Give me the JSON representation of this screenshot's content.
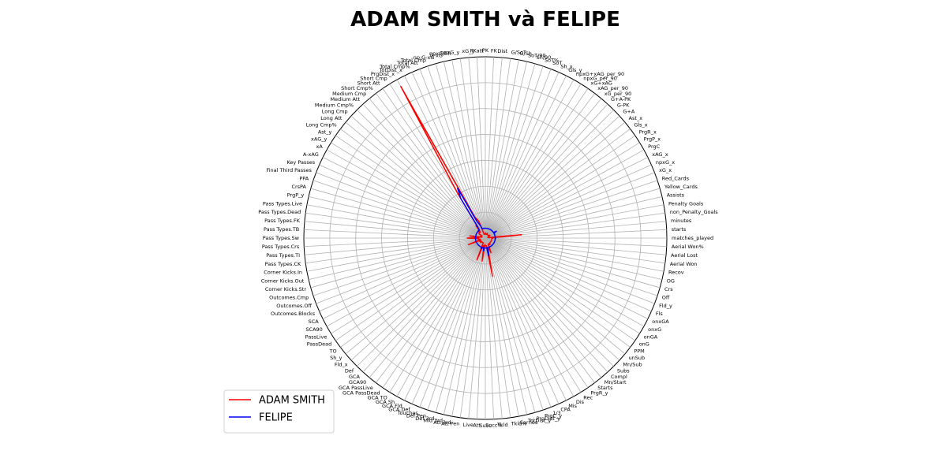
{
  "chart_data": {
    "type": "radar",
    "title": "ADAM SMITH và FELIPE",
    "categories": [
      "matches_played",
      "starts",
      "minutes",
      "non_Penalty_Goals",
      "Penalty Goals",
      "Assists",
      "Yellow_Cards",
      "Red_Cards",
      "xG_x",
      "npxG_x",
      "xAG_x",
      "PrgC",
      "PrgP_x",
      "PrgR_x",
      "Gls_x",
      "Ast_x",
      "G+A",
      "G-PK",
      "G+A-PK",
      "xG_per_90",
      "xAG_per_90",
      "xG+xAG",
      "npxG_per_90",
      "npxG+xAG_per_90",
      "Gls_y",
      "Sh_x",
      "SoT",
      "SoT%",
      "Sh/90",
      "SoT/90",
      "G/Sh",
      "G/SoT",
      "Dist",
      "FK",
      "PK",
      "PKatt",
      "xG_y",
      "npxG_y",
      "npxG/Sh",
      "G-xG",
      "np:G-xG",
      "Total Cmp",
      "Total Att",
      "Total Cmp%",
      "TotDist_x",
      "PrgDist_x",
      "Short Cmp",
      "Short Att",
      "Short Cmp%",
      "Medium Cmp",
      "Medium Att",
      "Medium Cmp%",
      "Long Cmp",
      "Long Att",
      "Long Cmp%",
      "Ast_y",
      "xAG_y",
      "xA",
      "A-xAG",
      "Key Passes",
      "Final Third Passes",
      "PPA",
      "CrsPA",
      "PrgP_y",
      "Pass Types.Live",
      "Pass Types.Dead",
      "Pass Types.FK",
      "Pass Types.TB",
      "Pass Types.Sw",
      "Pass Types.Crs",
      "Pass Types.TI",
      "Pass Types.CK",
      "Corner Kicks.In",
      "Corner Kicks.Out",
      "Corner Kicks.Str",
      "Outcomes.Cmp",
      "Outcomes.Off",
      "Outcomes.Blocks",
      "SCA",
      "SCA90",
      "PassLive",
      "PassDead",
      "TO",
      "Sh_y",
      "Fld_x",
      "Def",
      "GCA",
      "GCA90",
      "GCA PassLive",
      "GCA PassDead",
      "GCA TO",
      "GCA Sh",
      "GCA Fld",
      "GCA Def",
      "Touches",
      "Def Pen",
      "Def 3rd",
      "Mid 3rd",
      "Att 3rd",
      "Att Pen",
      "Live",
      "Att",
      "Succ",
      "Succ%",
      "Tkld",
      "Tkld%",
      "Carries",
      "TotDist_y",
      "PrgDist_y",
      "PrgC_y",
      "1/3",
      "CPA",
      "Mis",
      "Dis",
      "Rec",
      "PrgR_y",
      "Starts",
      "Mn/Start",
      "Compl",
      "Subs",
      "Mn/Sub",
      "unSub",
      "PPM",
      "onG",
      "onGA",
      "onxG",
      "onxGA",
      "Fls",
      "Fld_y",
      "Off",
      "Crs",
      "OG",
      "Recov",
      "Aerial Won",
      "Aerial Lost",
      "Aerial Won%"
    ],
    "series": [
      {
        "name": "ADAM SMITH",
        "color": "#ff0000",
        "values": [
          300,
          250,
          1400,
          150,
          100,
          150,
          100,
          100,
          150,
          150,
          150,
          200,
          200,
          200,
          150,
          150,
          150,
          150,
          150,
          150,
          150,
          150,
          150,
          150,
          150,
          200,
          200,
          150,
          150,
          150,
          150,
          150,
          150,
          200,
          150,
          150,
          150,
          150,
          150,
          150,
          150,
          200,
          700,
          800,
          900,
          6700,
          2000,
          500,
          600,
          300,
          400,
          400,
          300,
          300,
          300,
          300,
          150,
          150,
          150,
          150,
          150,
          200,
          200,
          150,
          300,
          600,
          300,
          250,
          700,
          300,
          300,
          250,
          250,
          200,
          200,
          250,
          700,
          200,
          200,
          250,
          250,
          200,
          200,
          200,
          250,
          200,
          200,
          200,
          200,
          200,
          200,
          200,
          200,
          200,
          900,
          400,
          300,
          400,
          300,
          900,
          300,
          250,
          300,
          300,
          300,
          300,
          1500,
          500,
          400,
          400,
          600,
          300,
          250,
          300,
          300,
          300,
          300,
          250,
          250,
          250,
          250,
          250,
          250,
          250,
          250,
          250,
          250,
          250,
          250,
          250,
          250,
          250,
          250,
          250,
          250,
          250
        ]
      },
      {
        "name": "FELIPE",
        "color": "#0000ff",
        "values": [
          400,
          380,
          380,
          380,
          380,
          380,
          380,
          380,
          380,
          380,
          380,
          380,
          500,
          380,
          380,
          380,
          380,
          380,
          380,
          380,
          380,
          380,
          380,
          380,
          380,
          380,
          380,
          380,
          380,
          380,
          380,
          380,
          380,
          380,
          380,
          380,
          380,
          380,
          380,
          380,
          380,
          380,
          500,
          600,
          700,
          2200,
          1800,
          500,
          380,
          380,
          380,
          380,
          380,
          380,
          380,
          380,
          380,
          380,
          380,
          380,
          380,
          380,
          380,
          380,
          380,
          380,
          380,
          380,
          380,
          380,
          380,
          380,
          380,
          380,
          380,
          380,
          380,
          380,
          380,
          380,
          380,
          380,
          380,
          380,
          380,
          380,
          380,
          380,
          380,
          380,
          380,
          380,
          380,
          380,
          450,
          380,
          380,
          380,
          380,
          500,
          380,
          380,
          380,
          380,
          380,
          380,
          700,
          380,
          380,
          380,
          380,
          380,
          380,
          380,
          380,
          380,
          380,
          380,
          380,
          380,
          380,
          380,
          380,
          380,
          380,
          380,
          380,
          380,
          380,
          380,
          380,
          380,
          380,
          380,
          380,
          380
        ]
      }
    ],
    "rlim": [
      0,
      7000
    ],
    "rticks": [
      1000,
      2000,
      3000,
      4000,
      5000,
      6000,
      7000
    ],
    "grid": true,
    "legend": "lower left"
  }
}
